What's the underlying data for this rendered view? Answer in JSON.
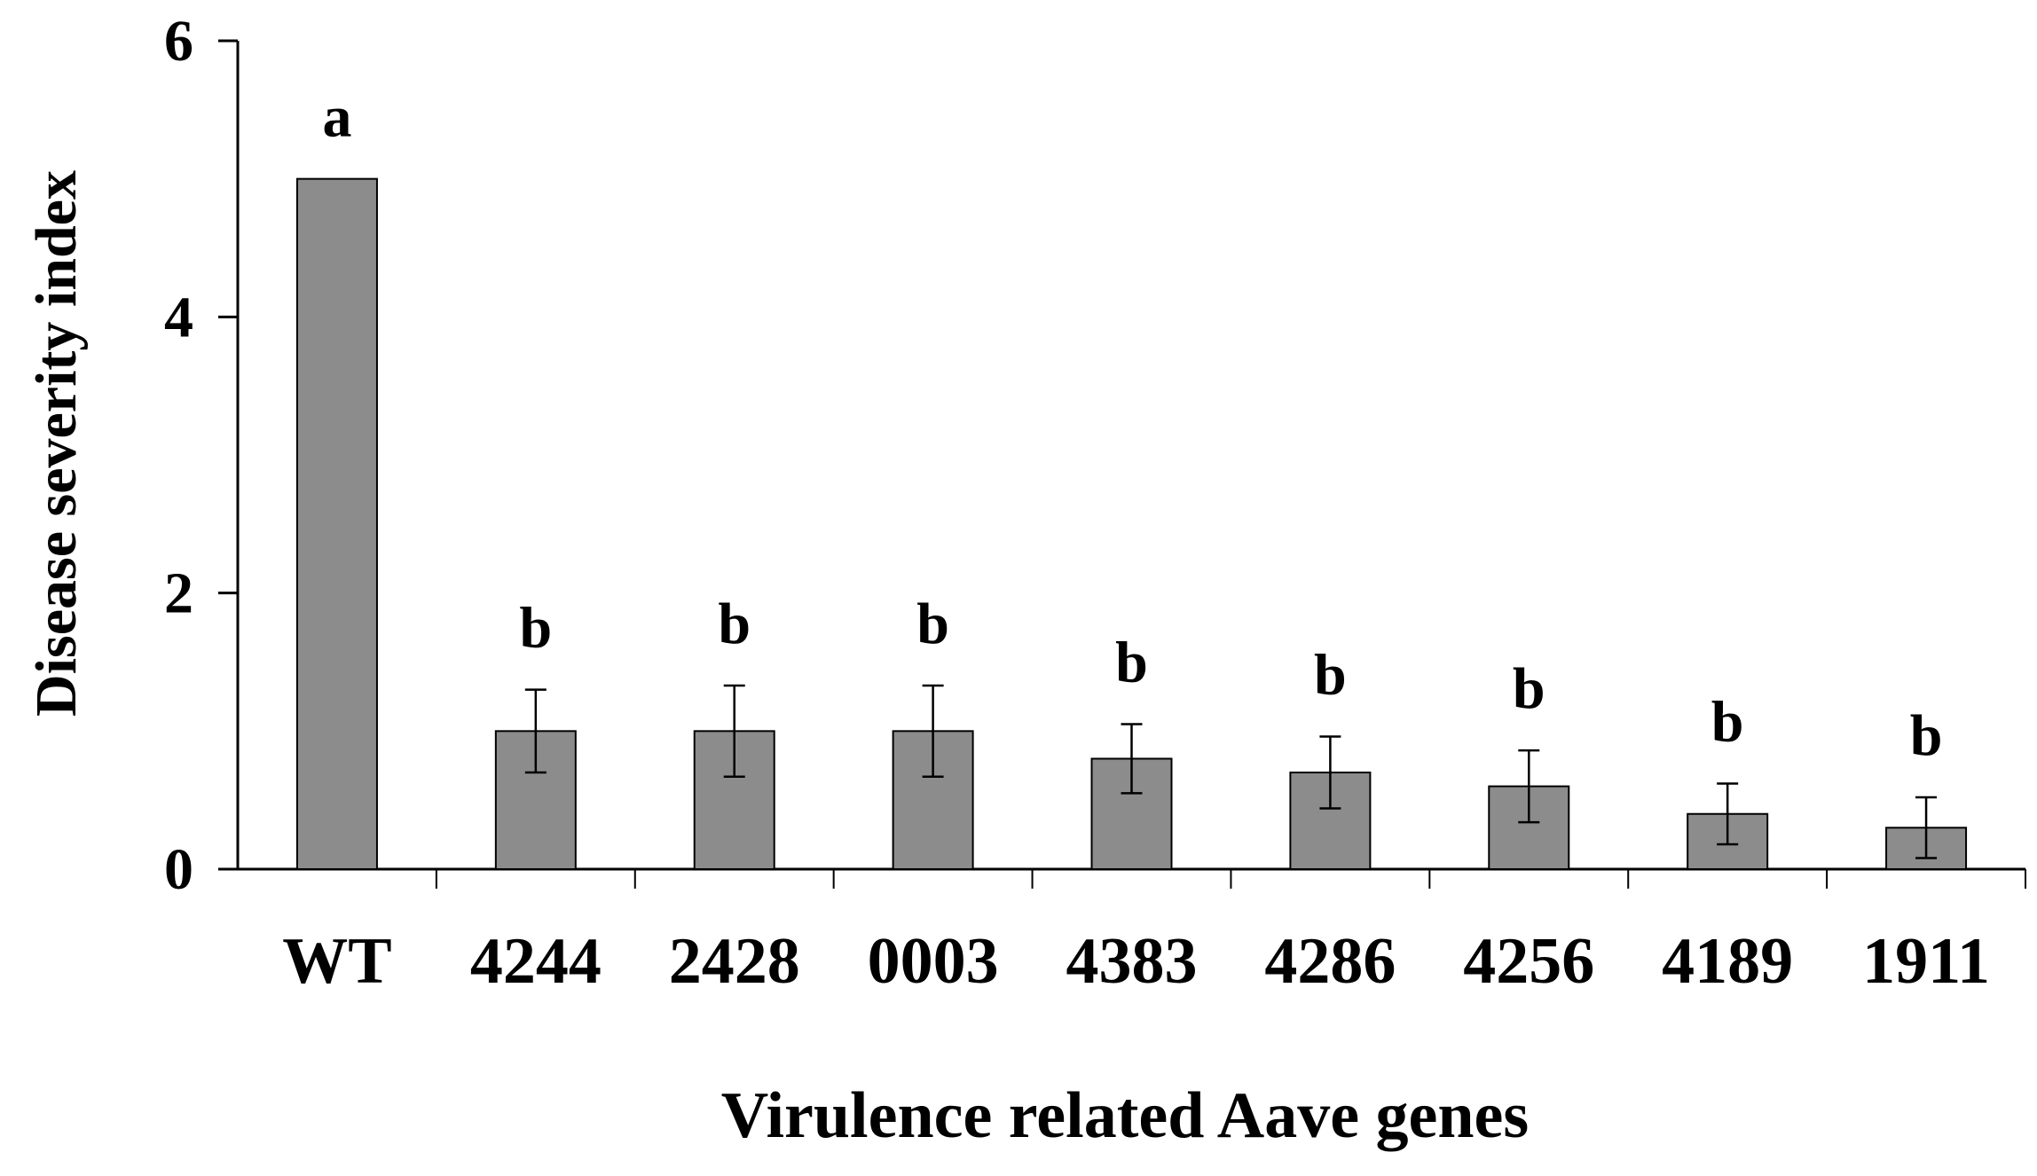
{
  "chart_data": {
    "type": "bar",
    "title": "",
    "xlabel": "Virulence related Aave genes",
    "ylabel": "Disease severity index",
    "categories": [
      "WT",
      "4244",
      "2428",
      "0003",
      "4383",
      "4286",
      "4256",
      "4189",
      "1911"
    ],
    "values": [
      5.0,
      1.0,
      1.0,
      1.0,
      0.8,
      0.7,
      0.6,
      0.4,
      0.3
    ],
    "errors": [
      0.0,
      0.3,
      0.33,
      0.33,
      0.25,
      0.26,
      0.26,
      0.22,
      0.22
    ],
    "significance": [
      "a",
      "b",
      "b",
      "b",
      "b",
      "b",
      "b",
      "b",
      "b"
    ],
    "ylim": [
      0,
      6
    ],
    "yticks": [
      "0",
      "2",
      "4",
      "6"
    ],
    "grid": false,
    "legend": "none",
    "bar_color": "#8c8c8c",
    "bar_edge_color": "#000000"
  }
}
